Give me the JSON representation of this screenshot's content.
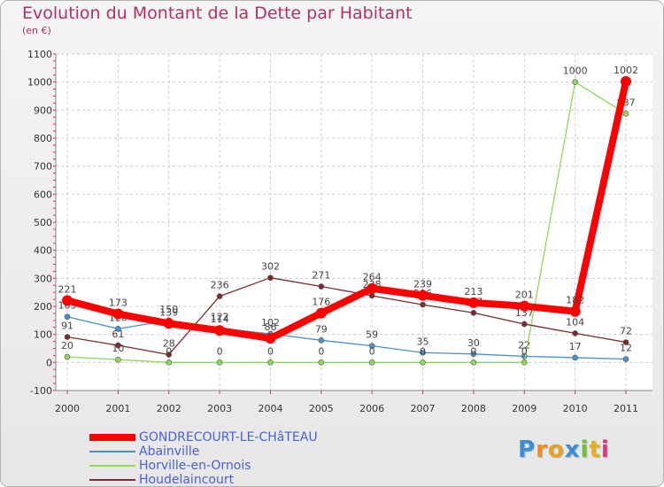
{
  "title": "Evolution du Montant de la Dette par Habitant",
  "unit": "(en €)",
  "logo": {
    "text": "Proxiti",
    "colors": [
      "#3a8fd8",
      "#f28a1e",
      "#e8a020",
      "#3a8fd8",
      "#6fbf3a",
      "#e8b020",
      "#d83a8a"
    ]
  },
  "chart_data": {
    "type": "line",
    "x": [
      "2000",
      "2001",
      "2002",
      "2003",
      "2004",
      "2005",
      "2006",
      "2007",
      "2008",
      "2009",
      "2010",
      "2011"
    ],
    "ylim": [
      -100,
      1100
    ],
    "yticks": [
      -100,
      0,
      100,
      200,
      300,
      400,
      500,
      600,
      700,
      800,
      900,
      1000,
      1100
    ],
    "grid": true,
    "legend_position": "bottom-left",
    "series": [
      {
        "name": "Abainville",
        "color": "#4a90c8",
        "values": [
          163,
          120,
          150,
          122,
          102,
          79,
          59,
          35,
          30,
          22,
          17,
          12
        ]
      },
      {
        "name": "Horville-en-Ornois",
        "color": "#8fd85a",
        "values": [
          20,
          10,
          0,
          0,
          0,
          0,
          0,
          0,
          0,
          0,
          1000,
          887
        ]
      },
      {
        "name": "Houdelaincourt",
        "color": "#7a2b2b",
        "values": [
          91,
          61,
          28,
          236,
          302,
          271,
          238,
          206,
          177,
          137,
          104,
          72
        ]
      },
      {
        "name": "GONDRECOURT-LE-CHâTEAU",
        "color": "#ff0000",
        "values": [
          221,
          173,
          139,
          114,
          86,
          176,
          264,
          239,
          213,
          201,
          182,
          1002
        ]
      }
    ],
    "legend": [
      "GONDRECOURT-LE-CHâTEAU",
      "Abainville",
      "Horville-en-Ornois",
      "Houdelaincourt"
    ]
  }
}
